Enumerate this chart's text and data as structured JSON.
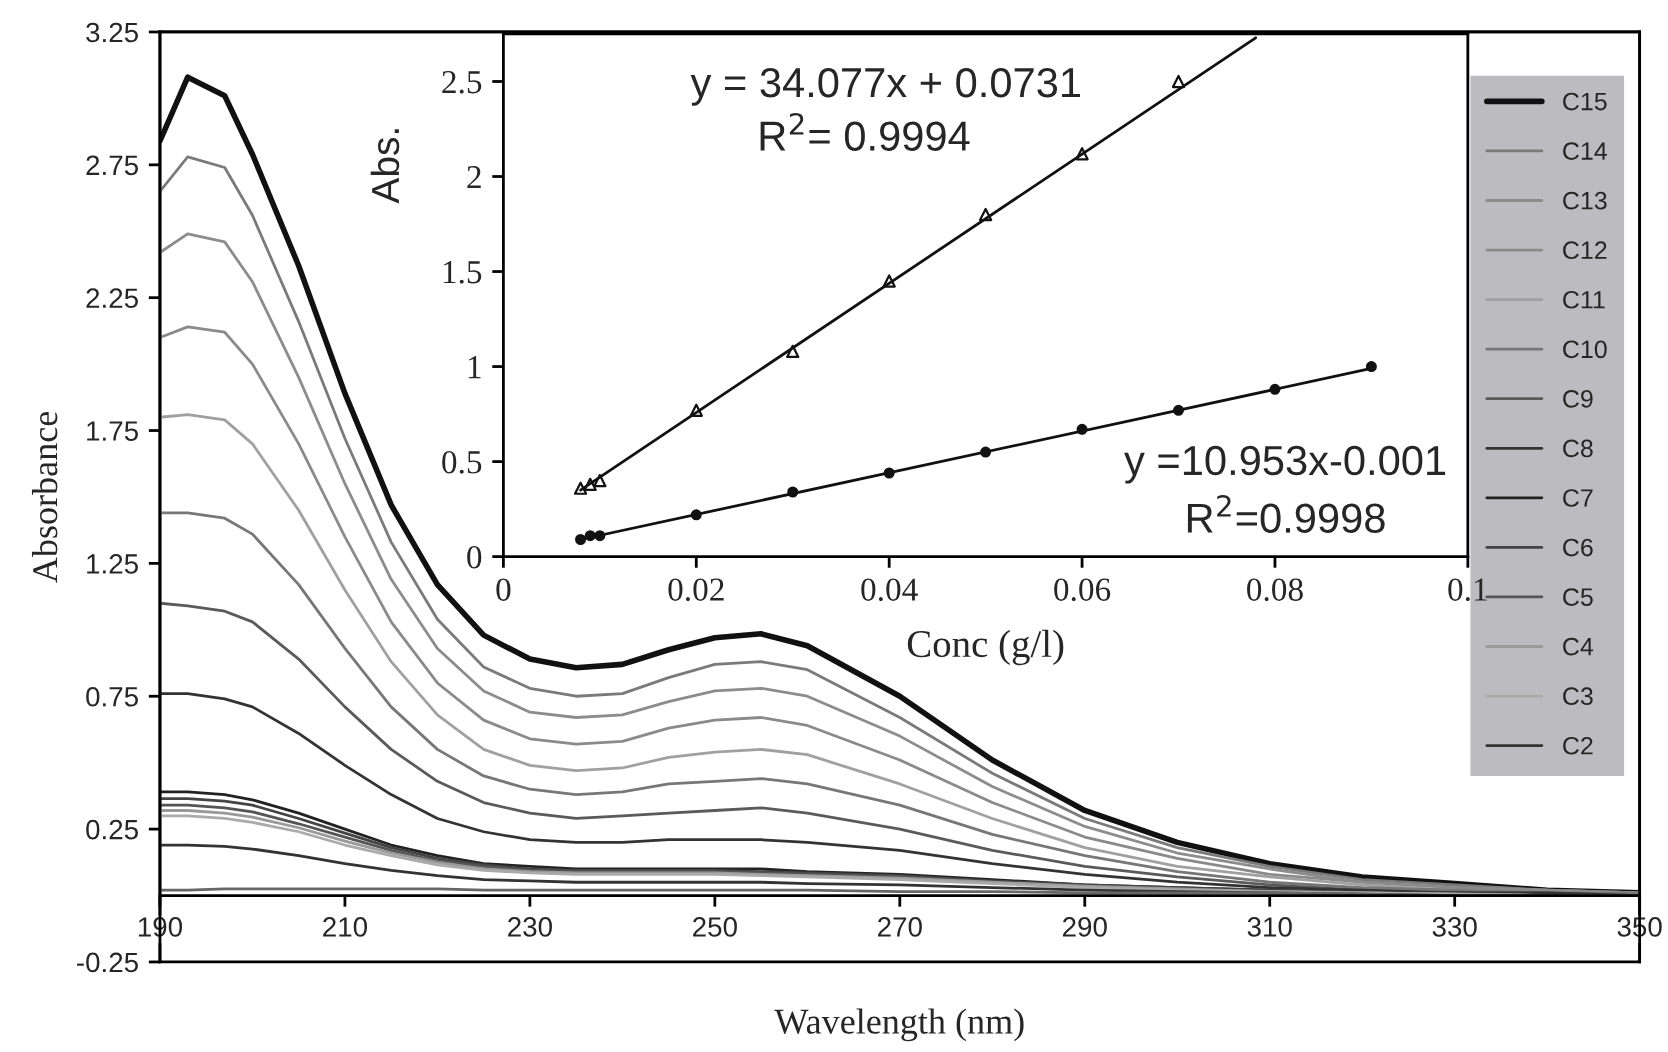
{
  "chart_data": [
    {
      "type": "line",
      "xlabel": "Wavelength (nm)",
      "ylabel": "Absorbance",
      "x": [
        190,
        193,
        197,
        200,
        205,
        210,
        215,
        220,
        225,
        230,
        235,
        240,
        245,
        250,
        255,
        260,
        270,
        280,
        290,
        300,
        310,
        320,
        330,
        340,
        350
      ],
      "xlim": [
        190,
        350
      ],
      "xticks": [
        190,
        210,
        230,
        250,
        270,
        290,
        310,
        330,
        350
      ],
      "ylim": [
        -0.25,
        3.25
      ],
      "yticks": [
        -0.25,
        0.25,
        0.75,
        1.25,
        1.75,
        2.25,
        2.75,
        3.25
      ],
      "legend": "right",
      "series": [
        {
          "name": "C15",
          "color": "#111111",
          "values": [
            2.84,
            3.08,
            3.01,
            2.79,
            2.37,
            1.89,
            1.47,
            1.17,
            0.98,
            0.89,
            0.857,
            0.87,
            0.925,
            0.97,
            0.985,
            0.94,
            0.75,
            0.51,
            0.32,
            0.2,
            0.12,
            0.07,
            0.045,
            0.02,
            0.01
          ]
        },
        {
          "name": "C14",
          "color": "#7a7a7a",
          "values": [
            2.65,
            2.78,
            2.74,
            2.56,
            2.16,
            1.72,
            1.33,
            1.04,
            0.86,
            0.78,
            0.75,
            0.76,
            0.82,
            0.87,
            0.88,
            0.85,
            0.67,
            0.46,
            0.29,
            0.18,
            0.11,
            0.06,
            0.04,
            0.02,
            0.01
          ]
        },
        {
          "name": "C13",
          "color": "#8c8c8c",
          "values": [
            2.42,
            2.49,
            2.46,
            2.31,
            1.95,
            1.55,
            1.19,
            0.93,
            0.77,
            0.69,
            0.67,
            0.68,
            0.73,
            0.77,
            0.78,
            0.75,
            0.6,
            0.41,
            0.26,
            0.16,
            0.1,
            0.05,
            0.03,
            0.02,
            0.01
          ]
        },
        {
          "name": "C12",
          "color": "#8a8a8a",
          "values": [
            2.1,
            2.14,
            2.12,
            2.0,
            1.7,
            1.35,
            1.03,
            0.8,
            0.66,
            0.59,
            0.57,
            0.58,
            0.63,
            0.66,
            0.67,
            0.64,
            0.51,
            0.35,
            0.22,
            0.14,
            0.08,
            0.05,
            0.03,
            0.02,
            0.01
          ]
        },
        {
          "name": "C11",
          "color": "#a0a0a0",
          "values": [
            1.8,
            1.81,
            1.79,
            1.7,
            1.45,
            1.15,
            0.88,
            0.68,
            0.55,
            0.49,
            0.47,
            0.48,
            0.52,
            0.54,
            0.55,
            0.53,
            0.42,
            0.29,
            0.18,
            0.11,
            0.07,
            0.04,
            0.02,
            0.01,
            0.01
          ]
        },
        {
          "name": "C10",
          "color": "#777777",
          "values": [
            1.44,
            1.44,
            1.42,
            1.36,
            1.17,
            0.93,
            0.71,
            0.55,
            0.45,
            0.4,
            0.38,
            0.39,
            0.42,
            0.43,
            0.44,
            0.42,
            0.34,
            0.23,
            0.15,
            0.09,
            0.05,
            0.03,
            0.02,
            0.01,
            0.01
          ]
        },
        {
          "name": "C9",
          "color": "#5a5a5a",
          "values": [
            1.1,
            1.09,
            1.07,
            1.03,
            0.89,
            0.71,
            0.55,
            0.43,
            0.35,
            0.31,
            0.29,
            0.3,
            0.31,
            0.32,
            0.33,
            0.31,
            0.25,
            0.17,
            0.11,
            0.07,
            0.04,
            0.02,
            0.01,
            0.01,
            0.0
          ]
        },
        {
          "name": "C8",
          "color": "#333333",
          "values": [
            0.76,
            0.76,
            0.74,
            0.71,
            0.61,
            0.49,
            0.38,
            0.29,
            0.24,
            0.21,
            0.2,
            0.2,
            0.21,
            0.21,
            0.21,
            0.2,
            0.17,
            0.12,
            0.08,
            0.05,
            0.03,
            0.02,
            0.01,
            0.01,
            0.0
          ]
        },
        {
          "name": "C7",
          "color": "#222222",
          "values": [
            0.39,
            0.39,
            0.38,
            0.36,
            0.31,
            0.25,
            0.19,
            0.15,
            0.12,
            0.11,
            0.1,
            0.1,
            0.1,
            0.1,
            0.1,
            0.09,
            0.08,
            0.06,
            0.04,
            0.03,
            0.02,
            0.01,
            0.01,
            0.0,
            0.0
          ]
        },
        {
          "name": "C6",
          "color": "#444444",
          "values": [
            0.365,
            0.365,
            0.355,
            0.34,
            0.29,
            0.235,
            0.18,
            0.14,
            0.115,
            0.1,
            0.095,
            0.095,
            0.095,
            0.095,
            0.09,
            0.085,
            0.075,
            0.055,
            0.04,
            0.03,
            0.02,
            0.01,
            0.01,
            0.0,
            0.0
          ]
        },
        {
          "name": "C5",
          "color": "#555555",
          "values": [
            0.34,
            0.34,
            0.33,
            0.315,
            0.27,
            0.22,
            0.17,
            0.13,
            0.11,
            0.095,
            0.09,
            0.09,
            0.09,
            0.09,
            0.085,
            0.08,
            0.07,
            0.05,
            0.035,
            0.025,
            0.015,
            0.01,
            0.005,
            0.0,
            0.0
          ]
        },
        {
          "name": "C4",
          "color": "#999999",
          "values": [
            0.32,
            0.32,
            0.31,
            0.295,
            0.255,
            0.205,
            0.16,
            0.125,
            0.1,
            0.09,
            0.085,
            0.085,
            0.085,
            0.085,
            0.08,
            0.075,
            0.065,
            0.05,
            0.035,
            0.025,
            0.015,
            0.01,
            0.005,
            0.0,
            0.0
          ]
        },
        {
          "name": "C3",
          "color": "#aaaaaa",
          "values": [
            0.3,
            0.3,
            0.29,
            0.275,
            0.24,
            0.19,
            0.15,
            0.115,
            0.095,
            0.085,
            0.08,
            0.08,
            0.08,
            0.08,
            0.075,
            0.07,
            0.06,
            0.045,
            0.03,
            0.02,
            0.015,
            0.01,
            0.005,
            0.0,
            0.0
          ]
        },
        {
          "name": "C2",
          "color": "#333333",
          "values": [
            0.19,
            0.19,
            0.185,
            0.175,
            0.15,
            0.12,
            0.095,
            0.075,
            0.06,
            0.055,
            0.05,
            0.05,
            0.05,
            0.05,
            0.05,
            0.045,
            0.04,
            0.03,
            0.02,
            0.015,
            0.01,
            0.005,
            0.0,
            0.0,
            0.0
          ]
        },
        {
          "color": "#666666",
          "values": [
            0.02,
            0.02,
            0.025,
            0.025,
            0.025,
            0.025,
            0.025,
            0.025,
            0.02,
            0.02,
            0.02,
            0.02,
            0.02,
            0.02,
            0.02,
            0.02,
            0.015,
            0.015,
            0.01,
            0.01,
            0.01,
            0.005,
            0.0,
            0.0,
            0.0
          ]
        }
      ]
    },
    {
      "type": "scatter",
      "xlabel": "Conc (g/l)",
      "ylabel": "Abs.",
      "xlim": [
        0,
        0.1
      ],
      "xticks": [
        0,
        0.02,
        0.04,
        0.06,
        0.08,
        0.1
      ],
      "ylim": [
        0,
        2.75
      ],
      "yticks": [
        0,
        0.5,
        1,
        1.5,
        2,
        2.5
      ],
      "annotations": [
        "y = 34.077x + 0.0731",
        "R$^{2}$= 0.9994",
        "y =10.953x-0.001",
        "R$^{2}$=0.9998"
      ],
      "series": [
        {
          "type": "scatter",
          "marker": "triangle",
          "color": "#111111",
          "x": [
            0.008,
            0.009,
            0.01,
            0.02,
            0.03,
            0.04,
            0.05,
            0.06,
            0.07
          ],
          "values": [
            0.36,
            0.38,
            0.4,
            0.77,
            1.08,
            1.45,
            1.8,
            2.12,
            2.5
          ]
        },
        {
          "type": "line",
          "marker": "none",
          "color": "#111111",
          "x": [
            0.008,
            0.078
          ],
          "values": [
            0.35,
            2.73
          ]
        },
        {
          "type": "scatter",
          "marker": "circle",
          "color": "#111111",
          "x": [
            0.008,
            0.009,
            0.01,
            0.02,
            0.03,
            0.04,
            0.05,
            0.06,
            0.07,
            0.08,
            0.09
          ],
          "values": [
            0.09,
            0.11,
            0.11,
            0.22,
            0.34,
            0.44,
            0.55,
            0.67,
            0.77,
            0.88,
            1.0
          ]
        },
        {
          "type": "line",
          "marker": "none",
          "color": "#111111",
          "x": [
            0.008,
            0.09
          ],
          "values": [
            0.09,
            0.99
          ]
        }
      ]
    }
  ]
}
